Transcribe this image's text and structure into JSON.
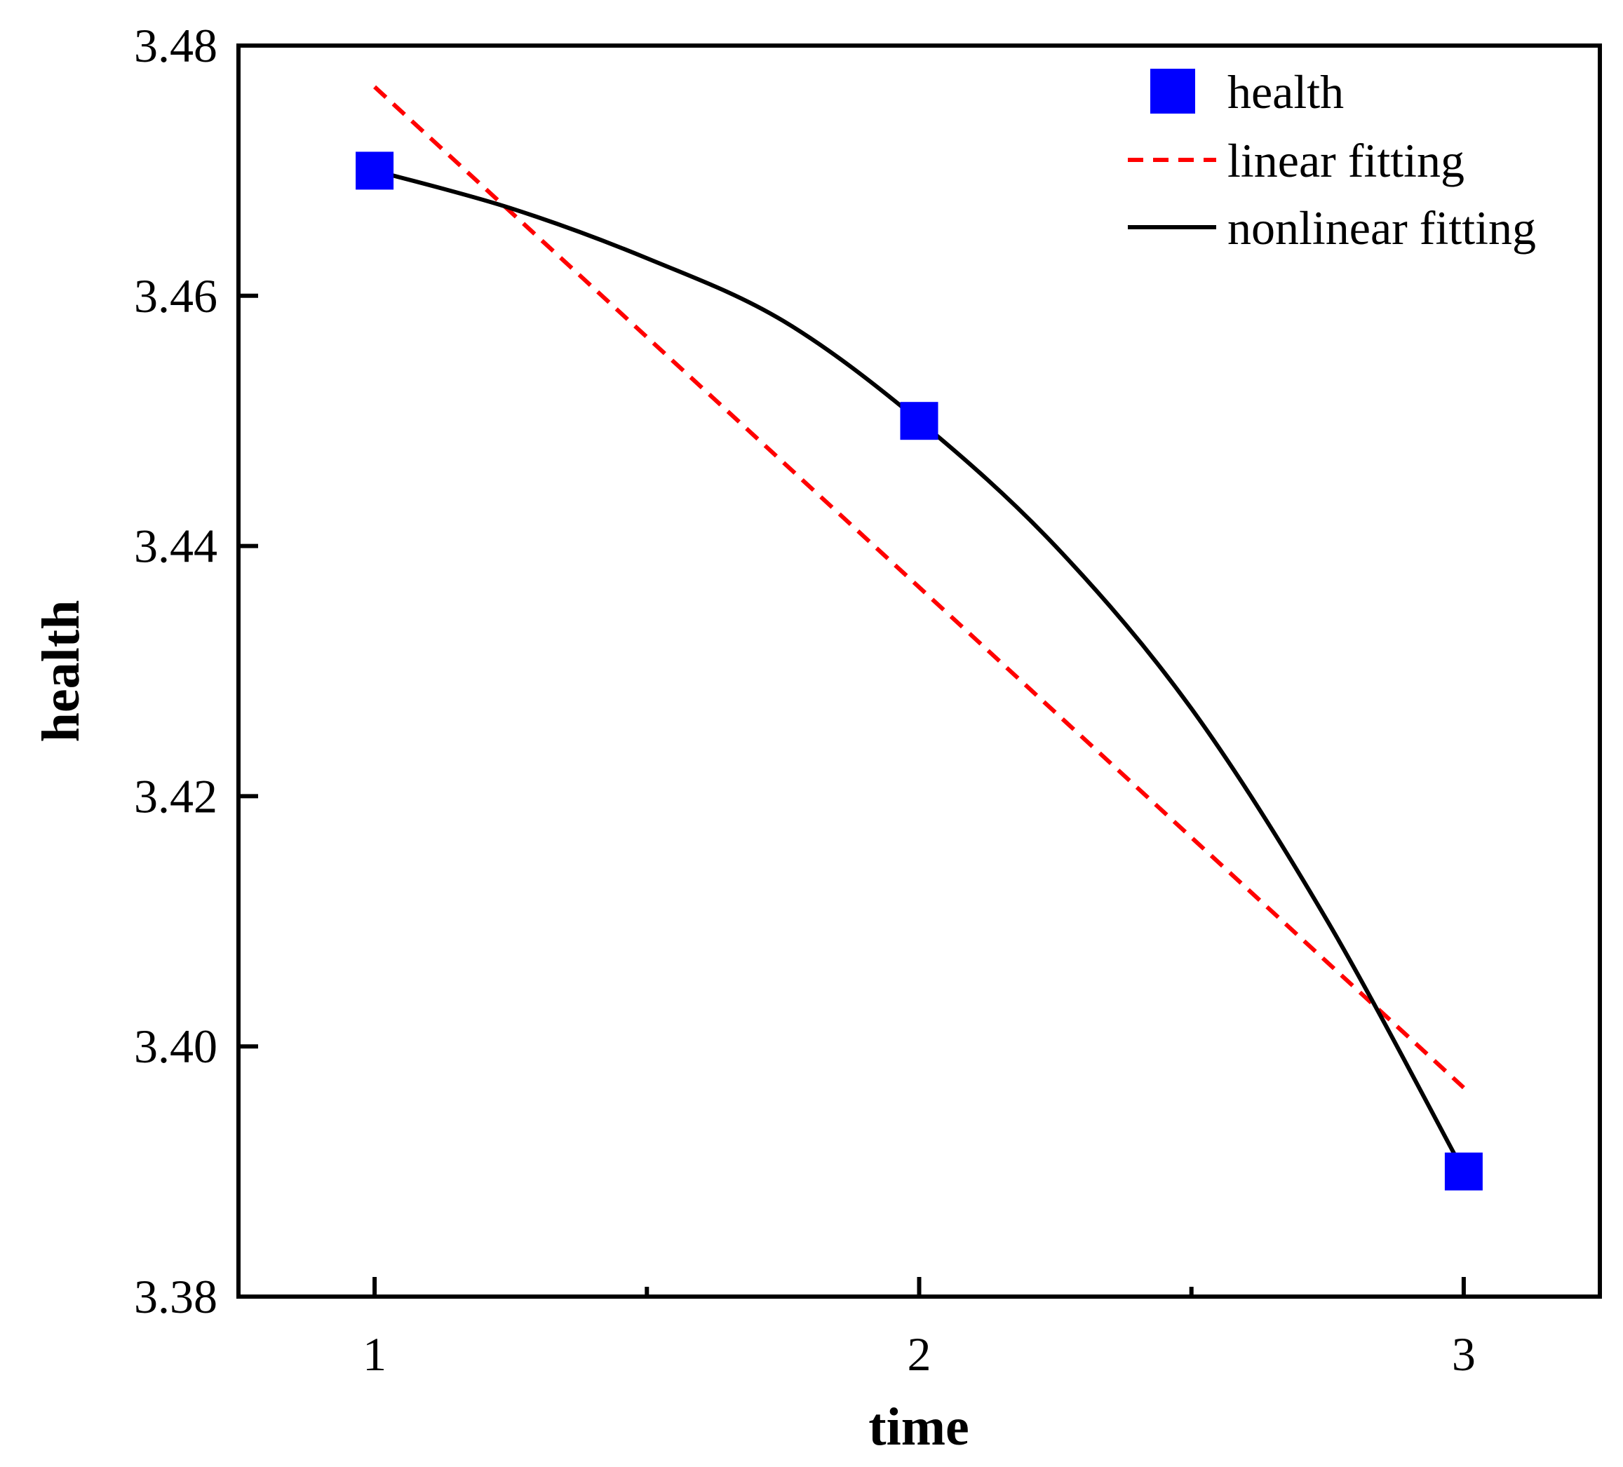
{
  "chart_data": {
    "type": "scatter",
    "title": "",
    "xlabel": "time",
    "ylabel": "health",
    "xlim": [
      0.75,
      3.25
    ],
    "ylim": [
      3.38,
      3.48
    ],
    "x_ticks": [
      1,
      2,
      3
    ],
    "x_minor_ticks": [
      1.5,
      2.5
    ],
    "y_ticks": [
      3.38,
      3.4,
      3.42,
      3.44,
      3.46,
      3.48
    ],
    "x_tick_labels": [
      "1",
      "2",
      "3"
    ],
    "y_tick_labels": [
      "3.38",
      "3.40",
      "3.42",
      "3.44",
      "3.46",
      "3.48"
    ],
    "grid": false,
    "legend_position": "top-right",
    "series": [
      {
        "name": "health",
        "kind": "markers",
        "marker": "square",
        "color": "#0000ff",
        "x": [
          1,
          2,
          3
        ],
        "y": [
          3.47,
          3.45,
          3.39
        ]
      },
      {
        "name": "linear fitting",
        "kind": "line",
        "style": "dashed",
        "color": "#ff0000",
        "x": [
          1,
          3
        ],
        "y": [
          3.4767,
          3.3967
        ]
      },
      {
        "name": "nonlinear fitting",
        "kind": "line",
        "style": "solid",
        "color": "#000000",
        "x": [
          1,
          1.25,
          1.5,
          1.75,
          2,
          2.25,
          2.5,
          2.75,
          3
        ],
        "y": [
          3.47,
          3.467,
          3.463,
          3.458,
          3.45,
          3.44,
          3.427,
          3.41,
          3.39
        ]
      }
    ]
  }
}
